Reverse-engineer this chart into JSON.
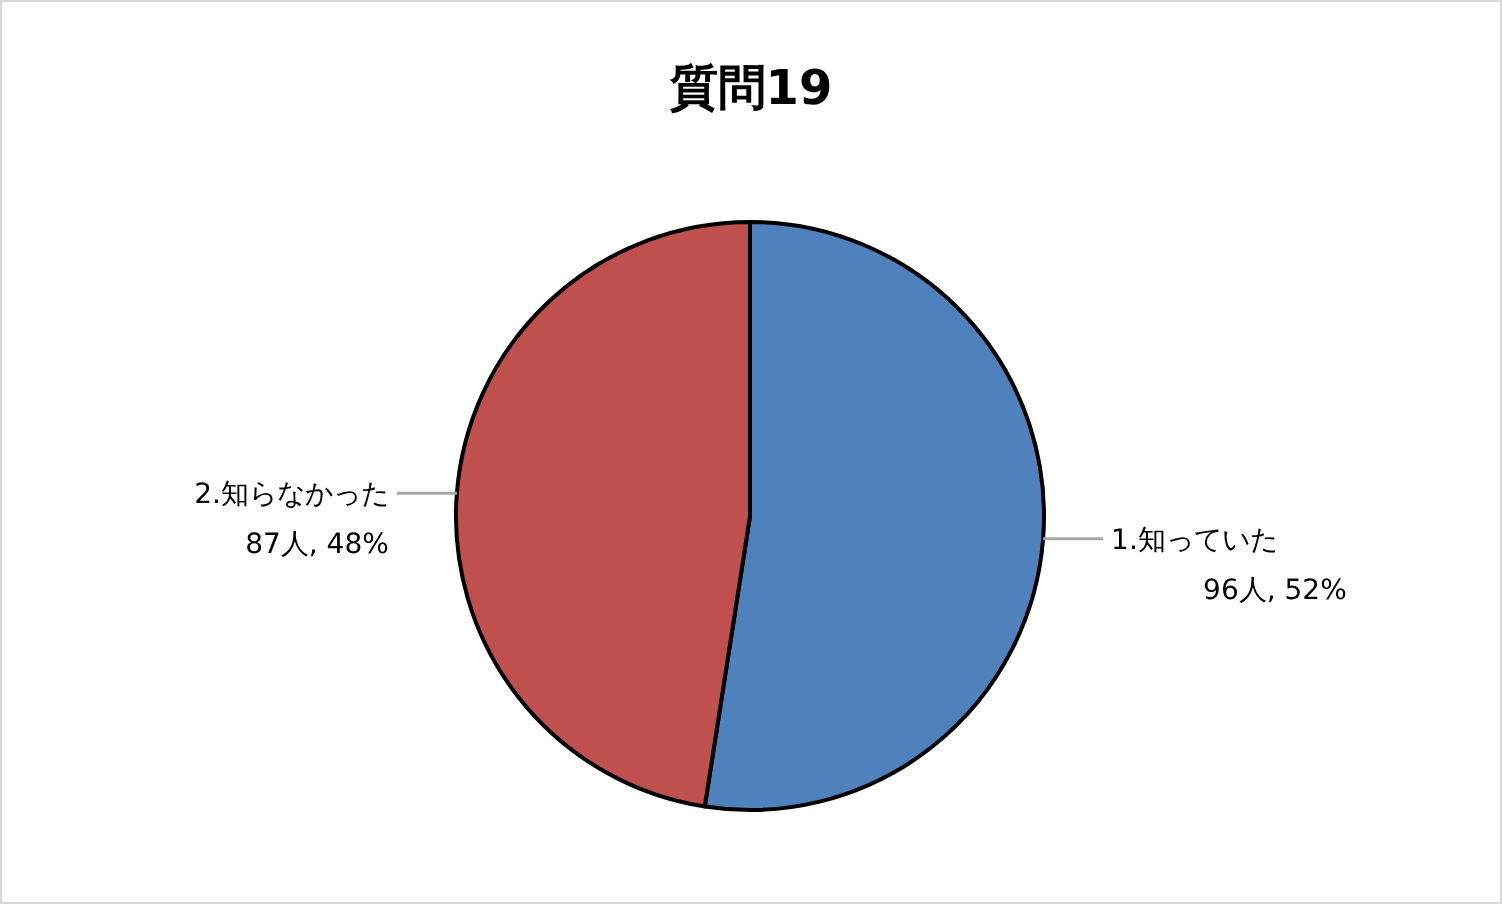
{
  "chart_data": {
    "type": "pie",
    "title": "質問19",
    "categories": [
      "1.知っていた",
      "2.知らなかった"
    ],
    "values": [
      96,
      87
    ],
    "colors": [
      "#4f81bd",
      "#c0504d"
    ],
    "value_labels": [
      "96人, 52%",
      "87人, 48%"
    ]
  }
}
